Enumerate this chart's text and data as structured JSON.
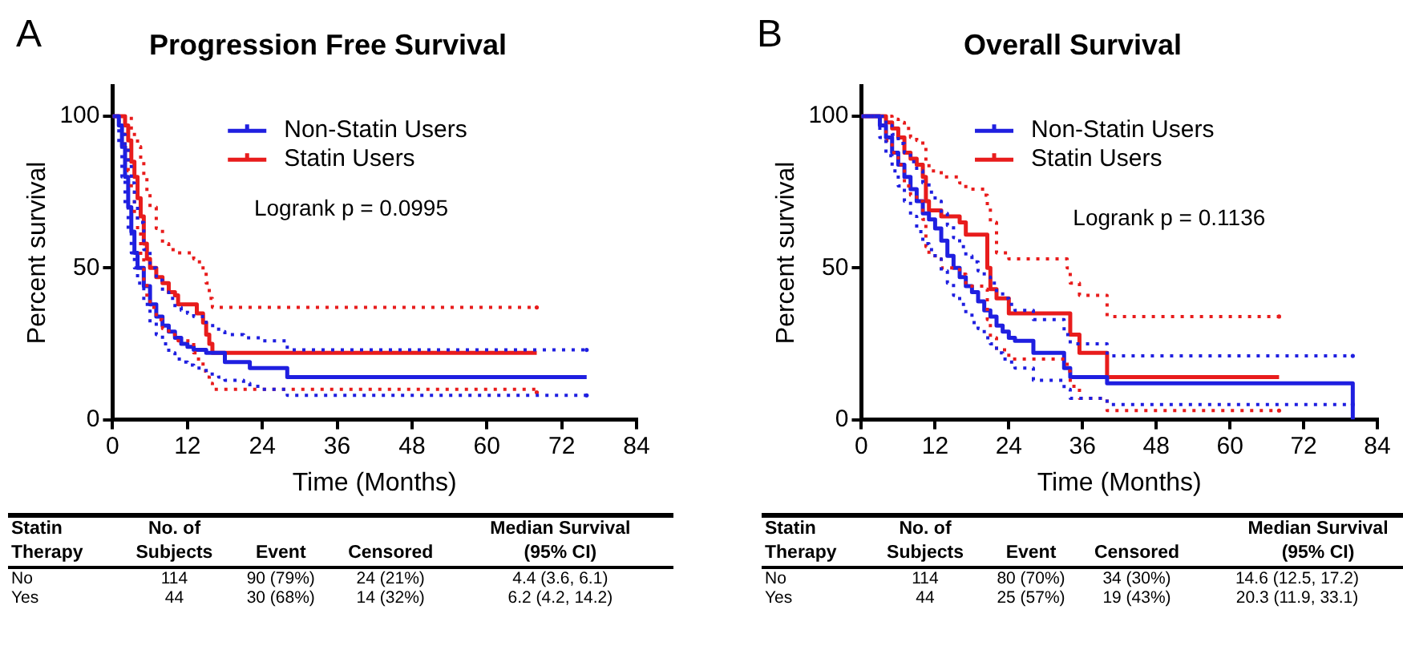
{
  "chart_data": [
    {
      "type": "step",
      "title": "Progression Free Survival",
      "xlabel": "Time (Months)",
      "ylabel": "Percent survival",
      "xlim": [
        0,
        84
      ],
      "xticks": [
        0,
        12,
        24,
        36,
        48,
        60,
        72,
        84
      ],
      "ylim": [
        0,
        110
      ],
      "yticks": [
        0,
        50,
        100
      ],
      "grid": false,
      "legend": "top",
      "line_style": "solid",
      "annotations": [
        "A",
        "Logrank p = 0.0995",
        "Statin Therapy",
        "No. of Subjects",
        "Event",
        "Censored",
        "Median Survival (95% CI)",
        "No",
        "114",
        "90 (79%)",
        "24 (21%)",
        "4.4 (3.6, 6.1)",
        "Yes",
        "44",
        "30 (68%)",
        "14 (32%)",
        "6.2 (4.2, 14.2)"
      ],
      "series": [
        {
          "color": "#1f1fe0",
          "line_style": "dotted",
          "x": [
            0,
            1,
            1.5,
            2,
            2.5,
            3,
            3.5,
            4,
            5,
            6,
            7,
            8,
            9,
            10,
            11,
            12,
            13,
            15,
            17,
            18,
            21,
            22,
            24,
            28,
            76
          ],
          "values": [
            100,
            97,
            94,
            90,
            84,
            78,
            71,
            65,
            56,
            50,
            46,
            42,
            40,
            37,
            36,
            35,
            34,
            31,
            29,
            28,
            27,
            27,
            26,
            23,
            23
          ]
        },
        {
          "color": "#1f1fe0",
          "line_style": "dotted",
          "x": [
            0,
            1,
            1.5,
            2,
            2.5,
            3,
            3.5,
            4,
            5,
            6,
            7,
            8,
            9,
            10,
            11,
            12,
            13,
            15,
            17,
            18,
            21,
            22,
            24,
            28,
            76
          ],
          "values": [
            100,
            90,
            80,
            70,
            62,
            55,
            50,
            45,
            38,
            32,
            28,
            25,
            22,
            20,
            19,
            18,
            17,
            15,
            14,
            13,
            12,
            11,
            10,
            8,
            8
          ]
        },
        {
          "color": "#e81c1c",
          "line_style": "dotted",
          "x": [
            0,
            1.5,
            2,
            2.5,
            3,
            3.5,
            4,
            4.5,
            5,
            5.5,
            6,
            7,
            8,
            9,
            10,
            10.5,
            13,
            13.5,
            14.5,
            15,
            15.5,
            16,
            68
          ],
          "values": [
            100,
            100,
            100,
            100,
            95,
            93,
            90,
            85,
            80,
            75,
            70,
            63,
            58,
            56,
            55,
            55,
            53,
            52,
            49,
            45,
            40,
            37,
            37
          ]
        },
        {
          "color": "#e81c1c",
          "line_style": "dotted",
          "x": [
            0,
            1.5,
            2,
            2.5,
            3,
            3.5,
            4,
            4.5,
            5,
            5.5,
            6,
            7,
            8,
            9,
            10,
            10.5,
            13,
            13.5,
            14.5,
            15,
            15.5,
            16,
            68
          ],
          "values": [
            100,
            100,
            90,
            82,
            75,
            68,
            62,
            54,
            45,
            40,
            37,
            33,
            30,
            28,
            27,
            26,
            22,
            20,
            16,
            14,
            12,
            10,
            9
          ]
        },
        {
          "name": "Non-Statin Users",
          "color": "#1f1fe0",
          "x": [
            0,
            1,
            1.5,
            2,
            2.5,
            3,
            3.5,
            4,
            5,
            6,
            7,
            8,
            9,
            10,
            11,
            12,
            13,
            15,
            17,
            18,
            21,
            22,
            24,
            28,
            76
          ],
          "values": [
            100,
            97,
            90,
            80,
            70,
            62,
            55,
            50,
            44,
            38,
            34,
            31,
            29,
            27,
            25,
            24,
            23,
            22,
            22,
            19,
            19,
            17,
            17,
            14,
            14
          ]
        },
        {
          "name": "Statin Users",
          "color": "#e81c1c",
          "x": [
            0,
            1.5,
            2,
            2.5,
            3,
            3.5,
            4,
            4.5,
            5,
            5.5,
            6,
            7,
            8,
            9,
            10,
            10.5,
            13,
            13.5,
            14.5,
            15,
            15.5,
            16,
            68
          ],
          "values": [
            100,
            100,
            97,
            92,
            85,
            80,
            73,
            67,
            58,
            53,
            50,
            47,
            45,
            42,
            41,
            38,
            38,
            35,
            32,
            28,
            25,
            22,
            22
          ]
        }
      ]
    },
    {
      "type": "step",
      "title": "Overall Survival",
      "xlabel": "Time (Months)",
      "ylabel": "Percent survival",
      "xlim": [
        0,
        84
      ],
      "xticks": [
        0,
        12,
        24,
        36,
        48,
        60,
        72,
        84
      ],
      "ylim": [
        0,
        110
      ],
      "yticks": [
        0,
        50,
        100
      ],
      "grid": false,
      "legend": "top",
      "line_style": "solid",
      "annotations": [
        "B",
        "Logrank p = 0.1136",
        "Statin Therapy",
        "No. of Subjects",
        "Event",
        "Censored",
        "Median Survival (95% CI)",
        "No",
        "114",
        "80 (70%)",
        "34 (30%)",
        "14.6 (12.5, 17.2)",
        "Yes",
        "44",
        "25 (57%)",
        "19 (43%)",
        "20.3 (11.9, 33.1)"
      ],
      "series": [
        {
          "color": "#1f1fe0",
          "line_style": "dotted",
          "x": [
            0,
            2.5,
            3,
            4,
            5,
            6,
            7,
            8,
            9,
            10,
            11,
            12,
            13,
            14,
            15,
            16,
            17,
            18,
            19,
            20,
            21,
            22,
            23,
            24,
            25,
            28,
            33,
            34,
            40,
            80
          ],
          "values": [
            100,
            100,
            100,
            97,
            94,
            91,
            88,
            85,
            82,
            78,
            75,
            72,
            68,
            64,
            60,
            57,
            54,
            52,
            49,
            47,
            45,
            42,
            40,
            38,
            36,
            33,
            28,
            25,
            21,
            21
          ]
        },
        {
          "color": "#1f1fe0",
          "line_style": "dotted",
          "x": [
            0,
            2.5,
            3,
            4,
            5,
            6,
            7,
            8,
            9,
            10,
            11,
            12,
            13,
            14,
            15,
            16,
            17,
            18,
            19,
            20,
            21,
            22,
            23,
            24,
            25,
            28,
            33,
            34,
            40,
            80
          ],
          "values": [
            100,
            100,
            93,
            87,
            82,
            77,
            72,
            67,
            62,
            58,
            56,
            53,
            49,
            45,
            41,
            38,
            35,
            32,
            30,
            27,
            25,
            22,
            20,
            19,
            17,
            13,
            10,
            7,
            5,
            5
          ]
        },
        {
          "color": "#e81c1c",
          "line_style": "dotted",
          "x": [
            0,
            3.5,
            4,
            5,
            6,
            7,
            8,
            9,
            10,
            10.5,
            11,
            13,
            16,
            17,
            20,
            20.5,
            21,
            22,
            24,
            33.5,
            34,
            35.5,
            40,
            68
          ],
          "values": [
            100,
            100,
            100,
            99,
            98,
            96,
            93,
            92,
            90,
            85,
            82,
            80,
            78,
            76,
            74,
            70,
            65,
            55,
            53,
            50,
            45,
            41,
            34,
            34
          ]
        },
        {
          "color": "#e81c1c",
          "line_style": "dotted",
          "x": [
            0,
            3.5,
            4,
            5,
            6,
            7,
            8,
            9,
            10,
            10.5,
            11,
            13,
            16,
            17,
            20,
            20.5,
            21,
            22,
            24,
            33.5,
            34,
            35.5,
            40,
            68
          ],
          "values": [
            100,
            100,
            92,
            88,
            84,
            77,
            74,
            72,
            66,
            57,
            54,
            50,
            48,
            44,
            43,
            33,
            27,
            23,
            20,
            16,
            11,
            7,
            3,
            3
          ]
        },
        {
          "name": "Non-Statin Users",
          "color": "#1f1fe0",
          "x": [
            0,
            2.5,
            3,
            4,
            5,
            6,
            7,
            8,
            9,
            10,
            11,
            12,
            13,
            14,
            15,
            16,
            17,
            18,
            19,
            20,
            21,
            22,
            23,
            24,
            25,
            28,
            33,
            34,
            40,
            80
          ],
          "values": [
            100,
            100,
            97,
            93,
            88,
            84,
            80,
            76,
            72,
            68,
            66,
            63,
            59,
            54,
            50,
            47,
            44,
            42,
            39,
            36,
            34,
            31,
            29,
            27,
            26,
            22,
            17,
            14,
            12,
            0
          ]
        },
        {
          "name": "Statin Users",
          "color": "#e81c1c",
          "x": [
            0,
            3.5,
            4,
            5,
            6,
            7,
            8,
            9,
            10,
            10.5,
            11,
            13,
            16,
            17,
            20,
            20.5,
            21,
            22,
            24,
            33.5,
            34,
            35.5,
            40,
            68
          ],
          "values": [
            100,
            100,
            98,
            96,
            93,
            88,
            86,
            84,
            80,
            72,
            69,
            67,
            65,
            61,
            61,
            50,
            43,
            40,
            35,
            35,
            28,
            22,
            14,
            14
          ]
        }
      ]
    }
  ]
}
